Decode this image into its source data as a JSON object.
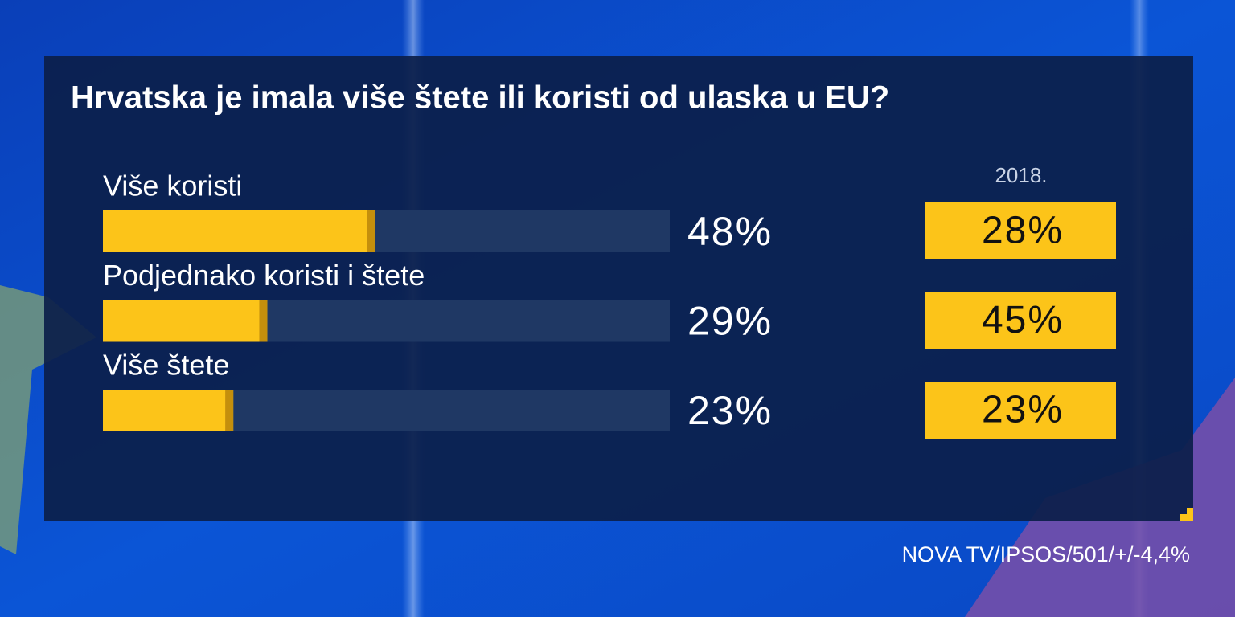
{
  "chart_data": {
    "type": "bar",
    "title": "Hrvatska je imala više štete ili koristi od ulaska u EU?",
    "categories": [
      "Više koristi",
      "Podjednako koristi i štete",
      "Više štete"
    ],
    "series": [
      {
        "values": [
          48,
          29,
          23
        ],
        "value_labels": [
          "48%",
          "29%",
          "23%"
        ],
        "color": "#fcc419"
      },
      {
        "name": "2018.",
        "values": [
          28,
          45,
          23
        ],
        "value_labels": [
          "28%",
          "45%",
          "23%"
        ],
        "color": "#fcc419"
      }
    ],
    "xlim": [
      0,
      100
    ],
    "source": "NOVA TV/IPSOS/501/+/-4,4%"
  }
}
